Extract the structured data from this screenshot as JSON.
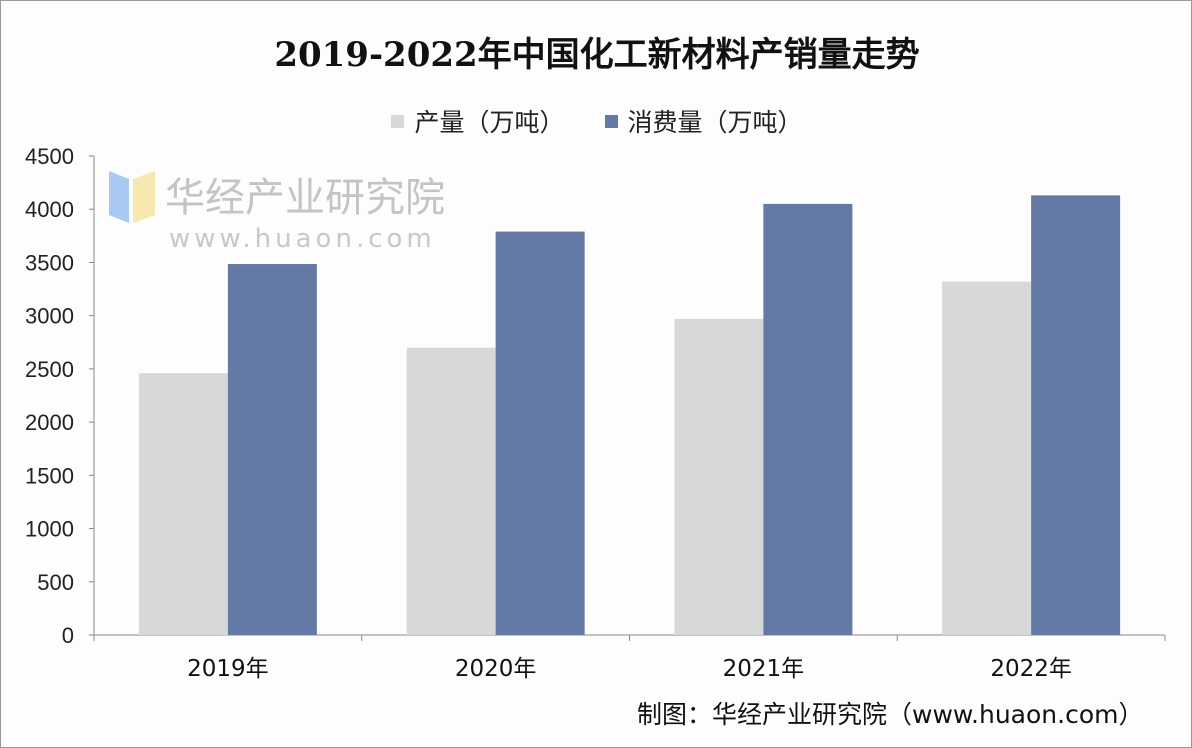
{
  "chart_data": {
    "type": "bar",
    "title": "2019-2022年中国化工新材料产销量走势",
    "categories": [
      "2019年",
      "2020年",
      "2021年",
      "2022年"
    ],
    "series": [
      {
        "name": "产量（万吨）",
        "values": [
          2460,
          2700,
          2970,
          3320
        ],
        "color": "#d7d8da"
      },
      {
        "name": "消费量（万吨）",
        "values": [
          3485,
          3790,
          4050,
          4130
        ],
        "color": "#6479a3"
      }
    ],
    "ylim": [
      0,
      4500
    ],
    "yticks": [
      0,
      500,
      1000,
      1500,
      2000,
      2500,
      3000,
      3500,
      4000,
      4500
    ],
    "xlabel": "",
    "ylabel": "",
    "grid": false,
    "legend": "top-center"
  },
  "source": "制图：华经产业研究院（www.huaon.com）",
  "watermark": {
    "name": "华经产业研究院",
    "url": "www.huaon.com"
  }
}
